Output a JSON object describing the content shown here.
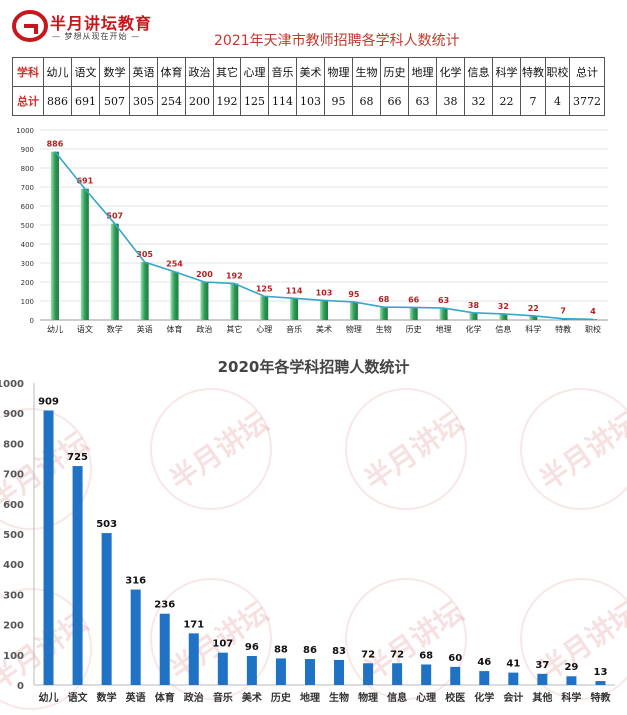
{
  "header": {
    "logo_brand": "半月讲坛教育",
    "logo_slogan": "— 梦想从现在开始 —",
    "title": "2021年天津市教师招聘各学科人数统计"
  },
  "summary_table": {
    "row_label_subject": "学科",
    "row_label_total": "总计",
    "subjects": [
      "幼儿",
      "语文",
      "数学",
      "英语",
      "体育",
      "政治",
      "其它",
      "心理",
      "音乐",
      "美术",
      "物理",
      "生物",
      "历史",
      "地理",
      "化学",
      "信息",
      "科学",
      "特教",
      "职校",
      "总计"
    ],
    "totals": [
      "886",
      "691",
      "507",
      "305",
      "254",
      "200",
      "192",
      "125",
      "114",
      "103",
      "95",
      "68",
      "66",
      "63",
      "38",
      "32",
      "22",
      "7",
      "4",
      "3772"
    ]
  },
  "watermark_text": "半月讲坛",
  "chart_data": [
    {
      "type": "bar",
      "title": "",
      "xlabel": "",
      "ylabel": "",
      "ylim": [
        0,
        1000
      ],
      "yticks": [
        0,
        100,
        200,
        300,
        400,
        500,
        600,
        700,
        800,
        900,
        1000
      ],
      "grid": true,
      "overlay_line": true,
      "bar_color": "#2e9e58",
      "line_color": "#36a6c9",
      "label_color": "#b22222",
      "categories": [
        "幼儿",
        "语文",
        "数学",
        "英语",
        "体育",
        "政治",
        "其它",
        "心理",
        "音乐",
        "美术",
        "物理",
        "生物",
        "历史",
        "地理",
        "化学",
        "信息",
        "科学",
        "特教",
        "职校"
      ],
      "values": [
        886,
        691,
        507,
        305,
        254,
        200,
        192,
        125,
        114,
        103,
        95,
        68,
        66,
        63,
        38,
        32,
        22,
        7,
        4
      ]
    },
    {
      "type": "bar",
      "title": "2020年各学科招聘人数统计",
      "xlabel": "",
      "ylabel": "",
      "ylim": [
        0,
        1000
      ],
      "yticks": [
        0,
        100,
        200,
        300,
        400,
        500,
        600,
        700,
        800,
        900,
        1000
      ],
      "grid": false,
      "bar_color": "#1f72c4",
      "label_color": "#111111",
      "categories": [
        "幼儿",
        "语文",
        "数学",
        "英语",
        "体育",
        "政治",
        "音乐",
        "美术",
        "历史",
        "地理",
        "生物",
        "物理",
        "信息",
        "心理",
        "校医",
        "化学",
        "会计",
        "其他",
        "科学",
        "特教"
      ],
      "values": [
        909,
        725,
        503,
        316,
        236,
        171,
        107,
        96,
        88,
        86,
        83,
        72,
        72,
        68,
        60,
        46,
        41,
        37,
        29,
        13
      ]
    }
  ]
}
